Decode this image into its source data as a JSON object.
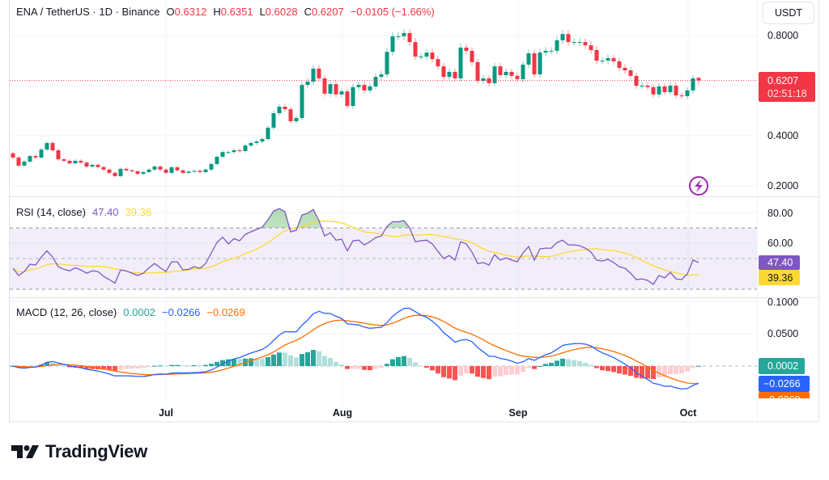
{
  "header": {
    "symbol": "ENA / TetherUS · 1D · Binance",
    "o_label": "O",
    "o": "0.6312",
    "h_label": "H",
    "h": "0.6351",
    "l_label": "L",
    "l": "0.6028",
    "c_label": "C",
    "c": "0.6207",
    "change": "−0.0105 (−1.66%)"
  },
  "currency_button": "USDT",
  "price_axis": [
    "0.8000",
    "0.4000",
    "0.2000"
  ],
  "last_price": {
    "value": "0.6207",
    "countdown": "02:51:18"
  },
  "rsi": {
    "legend": "RSI (14, close)",
    "value": "47.40",
    "ma_value": "39.36",
    "axis": [
      "80.00",
      "60.00"
    ]
  },
  "macd": {
    "legend": "MACD (12, 26, close)",
    "hist": "0.0002",
    "macd": "−0.0266",
    "signal": "−0.0269",
    "axis": [
      "0.1000",
      "0.0500"
    ]
  },
  "time_axis": [
    "Jul",
    "Aug",
    "Sep",
    "Oct"
  ],
  "brand": "TradingView",
  "icons": {
    "alert": "lightning-icon",
    "logo": "tradingview-logo"
  },
  "colors": {
    "up": "#089981",
    "down": "#f23645",
    "rsi": "#7e57c2",
    "rsi_ma": "#fdd835",
    "macd": "#2962ff",
    "signal": "#ff6d00",
    "hist_up": "#26a69a",
    "hist_up_light": "#b2dfdb",
    "hist_dn": "#ff5252",
    "hist_dn_light": "#ffcdd2"
  },
  "chart_data": {
    "type": "candlestick",
    "title": "ENA / TetherUS · 1D · Binance",
    "ylim": [
      0.2,
      0.85
    ],
    "first_open": 0.33,
    "last_candle": {
      "open": 0.6312,
      "high": 0.6351,
      "low": 0.6028,
      "close": 0.6207
    },
    "closes": [
      0.313,
      0.281,
      0.297,
      0.319,
      0.313,
      0.345,
      0.371,
      0.342,
      0.306,
      0.3,
      0.29,
      0.3,
      0.293,
      0.277,
      0.284,
      0.275,
      0.265,
      0.252,
      0.239,
      0.268,
      0.262,
      0.258,
      0.248,
      0.255,
      0.265,
      0.277,
      0.265,
      0.252,
      0.274,
      0.262,
      0.252,
      0.257,
      0.26,
      0.255,
      0.265,
      0.287,
      0.316,
      0.335,
      0.335,
      0.342,
      0.339,
      0.361,
      0.371,
      0.377,
      0.387,
      0.432,
      0.49,
      0.516,
      0.506,
      0.458,
      0.471,
      0.603,
      0.616,
      0.668,
      0.629,
      0.568,
      0.606,
      0.565,
      0.577,
      0.519,
      0.594,
      0.603,
      0.581,
      0.597,
      0.635,
      0.645,
      0.735,
      0.797,
      0.797,
      0.81,
      0.774,
      0.716,
      0.716,
      0.732,
      0.706,
      0.677,
      0.635,
      0.655,
      0.629,
      0.752,
      0.739,
      0.694,
      0.619,
      0.629,
      0.61,
      0.677,
      0.642,
      0.655,
      0.639,
      0.626,
      0.684,
      0.729,
      0.645,
      0.732,
      0.739,
      0.739,
      0.781,
      0.806,
      0.774,
      0.774,
      0.774,
      0.761,
      0.742,
      0.7,
      0.7,
      0.71,
      0.697,
      0.671,
      0.661,
      0.639,
      0.6,
      0.6,
      0.594,
      0.565,
      0.597,
      0.574,
      0.6,
      0.561,
      0.558,
      0.581,
      0.629,
      0.6207
    ],
    "rsi_values": [
      43.7,
      39,
      41.6,
      46.3,
      45.8,
      51,
      55,
      51,
      44.7,
      43,
      42,
      44,
      42.6,
      40.5,
      42,
      41.6,
      38.4,
      36.3,
      34,
      42.6,
      42,
      40.5,
      39,
      40.5,
      44,
      46.8,
      44,
      41.6,
      47.9,
      47.9,
      42.6,
      43,
      44.7,
      43.7,
      46.8,
      53.7,
      60.5,
      64,
      59.5,
      63,
      61.6,
      65.8,
      67.4,
      69,
      70.5,
      75.3,
      81,
      82.6,
      80.5,
      67.4,
      68.4,
      78.4,
      79.5,
      82,
      74.7,
      64.7,
      66.8,
      62,
      62.6,
      55,
      61.6,
      62,
      58.9,
      61,
      63.7,
      64.7,
      71,
      74,
      74,
      74.7,
      70,
      61,
      61.6,
      62,
      59.5,
      54.7,
      50,
      52,
      49,
      61,
      59.5,
      54.2,
      46.8,
      47.4,
      45.8,
      52.6,
      49,
      50.5,
      49,
      47.9,
      53.7,
      57.9,
      49,
      56.3,
      56.8,
      56.8,
      60.5,
      62,
      58.9,
      58.9,
      58.4,
      56.8,
      54.2,
      49,
      48.4,
      49.5,
      47.4,
      44.7,
      43.7,
      40.5,
      36.3,
      36.8,
      35.8,
      33.2,
      39,
      37.4,
      41,
      36.8,
      36.3,
      40,
      49,
      47.4
    ],
    "rsi_levels": [
      70,
      50,
      30
    ],
    "rsi_ma_length": 14,
    "macd_params": [
      12,
      26,
      9
    ]
  }
}
